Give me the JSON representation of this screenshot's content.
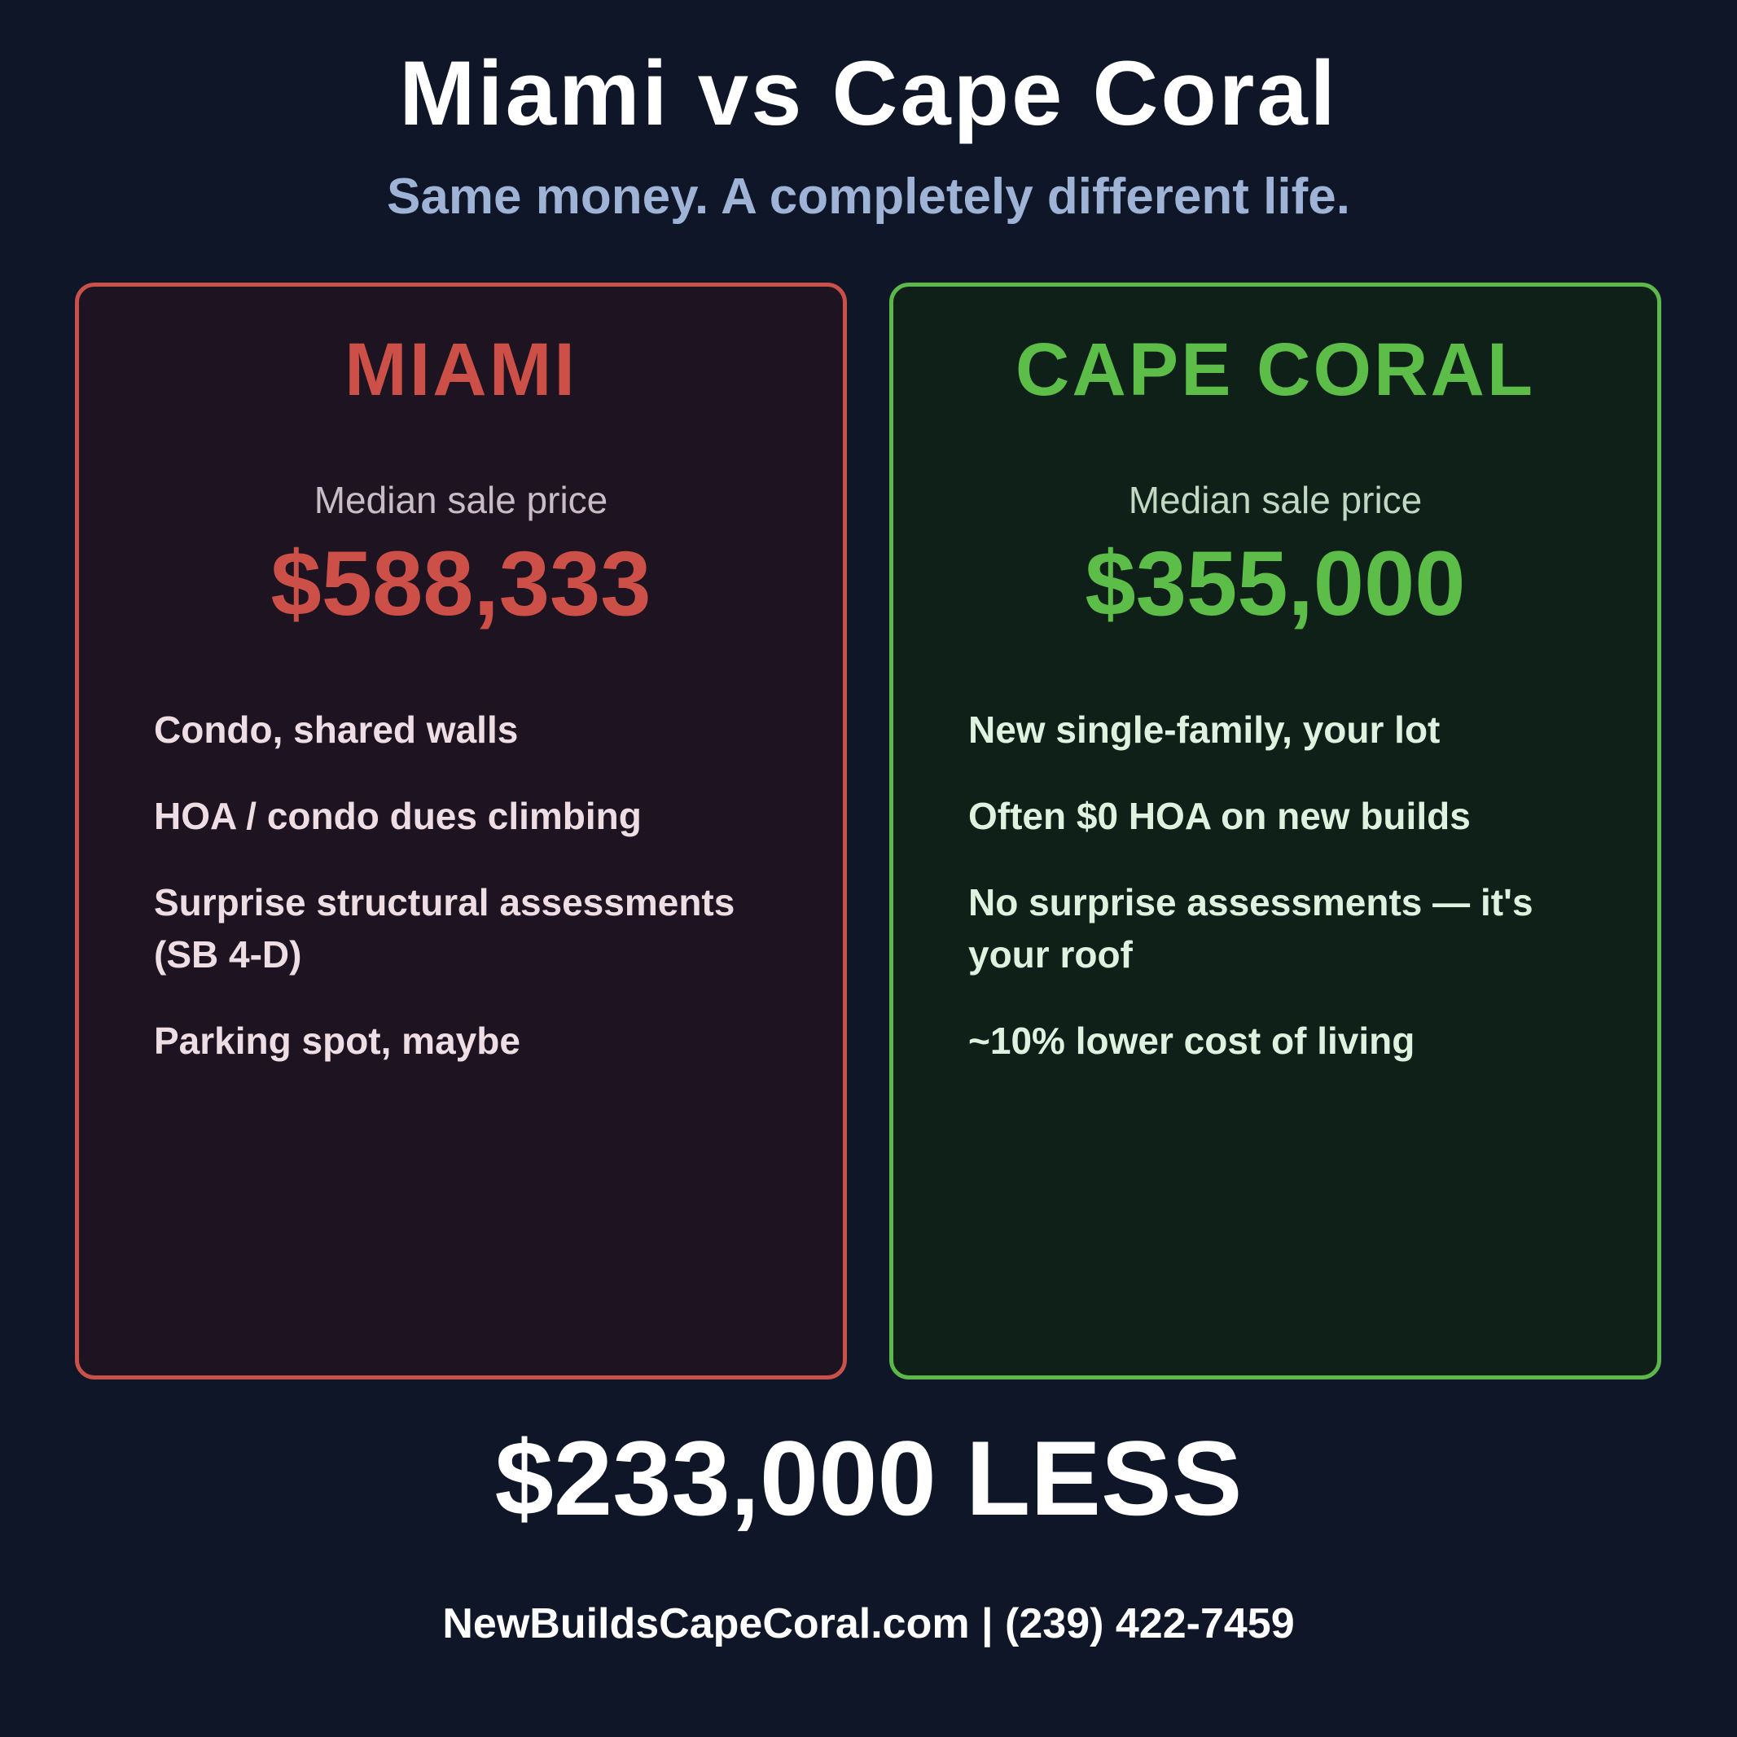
{
  "header": {
    "title": "Miami vs Cape Coral",
    "subtitle": "Same money. A completely different life."
  },
  "panels": [
    {
      "title": "MIAMI",
      "price_label": "Median sale price",
      "price": "$588,333",
      "items": [
        "Condo, shared walls",
        "HOA / condo dues climbing",
        "Surprise structural assessments (SB 4-D)",
        "Parking spot, maybe"
      ]
    },
    {
      "title": "CAPE CORAL",
      "price_label": "Median sale price",
      "price": "$355,000",
      "items": [
        "New single-family, your lot",
        "Often $0 HOA on new builds",
        "No surprise assessments — it's your roof",
        "~10% lower cost of living"
      ]
    }
  ],
  "footer": {
    "difference": "$233,000 LESS",
    "contact": "NewBuildsCapeCoral.com | (239) 422-7459"
  }
}
